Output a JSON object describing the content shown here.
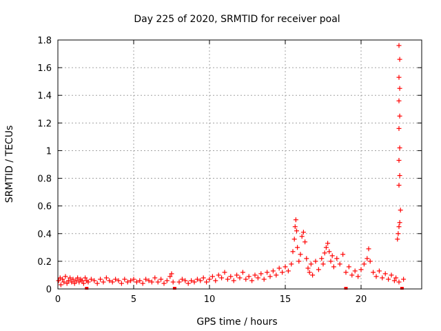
{
  "chart_data": {
    "type": "scatter",
    "title": "Day 225 of 2020, SRMTID for receiver poal",
    "xlabel": "GPS time / hours",
    "ylabel": "SRMTID / TECUs",
    "xlim": [
      0,
      24
    ],
    "ylim": [
      0,
      1.8
    ],
    "x_ticks": [
      0,
      5,
      10,
      15,
      20
    ],
    "x_tick_labels": [
      "0",
      "5",
      "10",
      "15",
      "20"
    ],
    "y_ticks": [
      0,
      0.2,
      0.4,
      0.6,
      0.8,
      1.0,
      1.2,
      1.4,
      1.6,
      1.8
    ],
    "y_tick_labels": [
      "0",
      "0.2",
      "0.4",
      "0.6",
      "0.8",
      "1",
      "1.2",
      "1.4",
      "1.6",
      "1.8"
    ],
    "grid": true,
    "marker": "+",
    "color": "#ff0000",
    "series": [
      {
        "name": "SRMTID",
        "points": [
          [
            0.05,
            0.06
          ],
          [
            0.15,
            0.08
          ],
          [
            0.2,
            0.03
          ],
          [
            0.3,
            0.07
          ],
          [
            0.4,
            0.05
          ],
          [
            0.5,
            0.09
          ],
          [
            0.6,
            0.04
          ],
          [
            0.7,
            0.06
          ],
          [
            0.8,
            0.08
          ],
          [
            0.9,
            0.05
          ],
          [
            1.0,
            0.07
          ],
          [
            1.1,
            0.04
          ],
          [
            1.2,
            0.06
          ],
          [
            1.3,
            0.08
          ],
          [
            1.4,
            0.05
          ],
          [
            1.5,
            0.07
          ],
          [
            1.6,
            0.06
          ],
          [
            1.7,
            0.04
          ],
          [
            1.8,
            0.08
          ],
          [
            1.9,
            0.06
          ],
          [
            2.0,
            0.05
          ],
          [
            2.2,
            0.07
          ],
          [
            2.4,
            0.06
          ],
          [
            2.6,
            0.04
          ],
          [
            2.8,
            0.07
          ],
          [
            3.0,
            0.05
          ],
          [
            3.2,
            0.08
          ],
          [
            3.4,
            0.06
          ],
          [
            3.6,
            0.05
          ],
          [
            3.8,
            0.07
          ],
          [
            4.0,
            0.06
          ],
          [
            4.2,
            0.04
          ],
          [
            4.4,
            0.07
          ],
          [
            4.6,
            0.05
          ],
          [
            4.8,
            0.06
          ],
          [
            5.0,
            0.07
          ],
          [
            5.2,
            0.05
          ],
          [
            5.4,
            0.06
          ],
          [
            5.6,
            0.04
          ],
          [
            5.8,
            0.07
          ],
          [
            6.0,
            0.06
          ],
          [
            6.2,
            0.05
          ],
          [
            6.4,
            0.08
          ],
          [
            6.6,
            0.05
          ],
          [
            6.8,
            0.07
          ],
          [
            7.0,
            0.04
          ],
          [
            7.2,
            0.06
          ],
          [
            7.4,
            0.09
          ],
          [
            7.5,
            0.11
          ],
          [
            7.6,
            0.05
          ],
          [
            8.0,
            0.05
          ],
          [
            8.2,
            0.07
          ],
          [
            8.4,
            0.06
          ],
          [
            8.6,
            0.04
          ],
          [
            8.8,
            0.06
          ],
          [
            9.0,
            0.05
          ],
          [
            9.2,
            0.07
          ],
          [
            9.4,
            0.06
          ],
          [
            9.6,
            0.08
          ],
          [
            9.8,
            0.05
          ],
          [
            10.0,
            0.07
          ],
          [
            10.2,
            0.09
          ],
          [
            10.4,
            0.06
          ],
          [
            10.6,
            0.1
          ],
          [
            10.8,
            0.08
          ],
          [
            11.0,
            0.12
          ],
          [
            11.2,
            0.07
          ],
          [
            11.4,
            0.09
          ],
          [
            11.6,
            0.06
          ],
          [
            11.8,
            0.1
          ],
          [
            12.0,
            0.08
          ],
          [
            12.2,
            0.12
          ],
          [
            12.4,
            0.07
          ],
          [
            12.6,
            0.09
          ],
          [
            12.8,
            0.06
          ],
          [
            13.0,
            0.1
          ],
          [
            13.2,
            0.08
          ],
          [
            13.4,
            0.11
          ],
          [
            13.6,
            0.07
          ],
          [
            13.8,
            0.12
          ],
          [
            14.0,
            0.09
          ],
          [
            14.2,
            0.13
          ],
          [
            14.4,
            0.1
          ],
          [
            14.6,
            0.15
          ],
          [
            14.8,
            0.12
          ],
          [
            15.0,
            0.16
          ],
          [
            15.2,
            0.13
          ],
          [
            15.4,
            0.18
          ],
          [
            15.5,
            0.27
          ],
          [
            15.6,
            0.36
          ],
          [
            15.65,
            0.45
          ],
          [
            15.7,
            0.5
          ],
          [
            15.75,
            0.42
          ],
          [
            15.8,
            0.3
          ],
          [
            15.9,
            0.2
          ],
          [
            16.0,
            0.25
          ],
          [
            16.1,
            0.38
          ],
          [
            16.2,
            0.41
          ],
          [
            16.3,
            0.34
          ],
          [
            16.4,
            0.22
          ],
          [
            16.5,
            0.15
          ],
          [
            16.6,
            0.12
          ],
          [
            16.7,
            0.18
          ],
          [
            16.8,
            0.1
          ],
          [
            17.0,
            0.2
          ],
          [
            17.2,
            0.14
          ],
          [
            17.4,
            0.22
          ],
          [
            17.5,
            0.18
          ],
          [
            17.6,
            0.26
          ],
          [
            17.7,
            0.3
          ],
          [
            17.8,
            0.33
          ],
          [
            17.9,
            0.27
          ],
          [
            18.0,
            0.2
          ],
          [
            18.1,
            0.24
          ],
          [
            18.2,
            0.16
          ],
          [
            18.4,
            0.22
          ],
          [
            18.6,
            0.18
          ],
          [
            18.8,
            0.25
          ],
          [
            19.0,
            0.12
          ],
          [
            19.2,
            0.16
          ],
          [
            19.4,
            0.1
          ],
          [
            19.6,
            0.13
          ],
          [
            19.8,
            0.09
          ],
          [
            20.0,
            0.14
          ],
          [
            20.2,
            0.18
          ],
          [
            20.4,
            0.22
          ],
          [
            20.5,
            0.29
          ],
          [
            20.6,
            0.2
          ],
          [
            20.8,
            0.12
          ],
          [
            21.0,
            0.09
          ],
          [
            21.2,
            0.13
          ],
          [
            21.4,
            0.08
          ],
          [
            21.6,
            0.11
          ],
          [
            21.8,
            0.07
          ],
          [
            22.0,
            0.1
          ],
          [
            22.2,
            0.06
          ],
          [
            22.3,
            0.08
          ],
          [
            22.5,
            0.05
          ],
          [
            22.4,
            0.36
          ],
          [
            22.45,
            0.4
          ],
          [
            22.5,
            0.45
          ],
          [
            22.55,
            0.48
          ],
          [
            22.6,
            0.57
          ],
          [
            22.5,
            0.75
          ],
          [
            22.55,
            0.82
          ],
          [
            22.5,
            0.93
          ],
          [
            22.55,
            1.02
          ],
          [
            22.5,
            1.16
          ],
          [
            22.55,
            1.25
          ],
          [
            22.5,
            1.36
          ],
          [
            22.55,
            1.45
          ],
          [
            22.5,
            1.53
          ],
          [
            22.55,
            1.66
          ],
          [
            22.5,
            1.76
          ],
          [
            22.8,
            0.07
          ]
        ]
      }
    ],
    "baseline_markers": [
      [
        1.9,
        0.0
      ],
      [
        7.7,
        0.0
      ],
      [
        19.0,
        0.0
      ],
      [
        22.7,
        0.0
      ]
    ]
  }
}
